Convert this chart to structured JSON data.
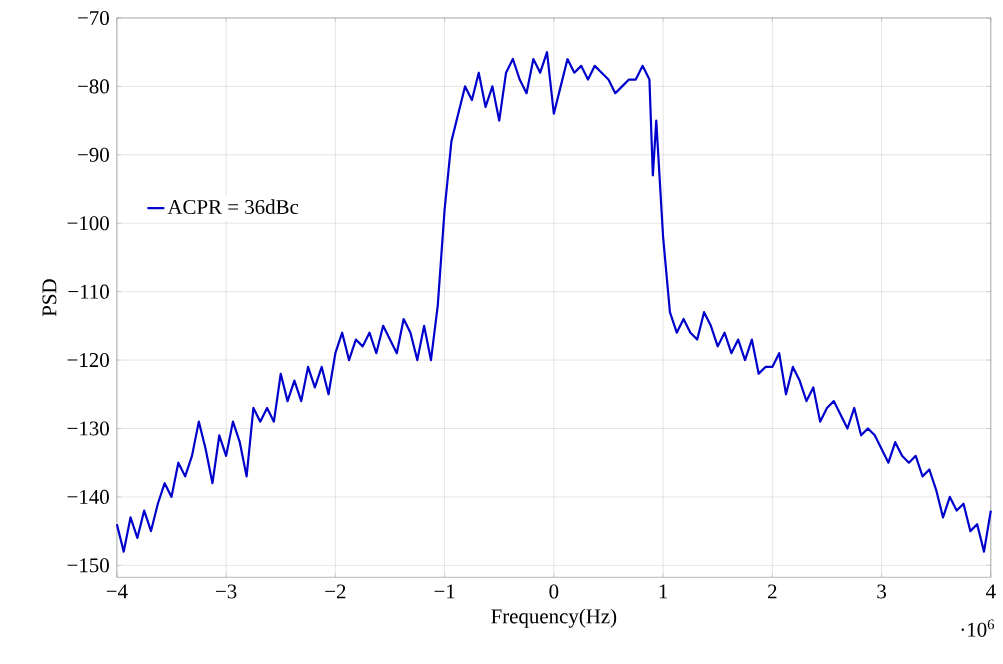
{
  "chart_data": {
    "type": "line",
    "xlabel": "Frequency(Hz)",
    "ylabel": "PSD",
    "annotations": [
      "·10$^{6}$"
    ],
    "x": [
      -4,
      -3.9375,
      -3.875,
      -3.8125,
      -3.75,
      -3.6875,
      -3.625,
      -3.5625,
      -3.5,
      -3.4375,
      -3.375,
      -3.3125,
      -3.25,
      -3.1875,
      -3.125,
      -3.0625,
      -3,
      -2.9375,
      -2.875,
      -2.8125,
      -2.75,
      -2.6875,
      -2.625,
      -2.5625,
      -2.5,
      -2.4375,
      -2.375,
      -2.3125,
      -2.25,
      -2.1875,
      -2.125,
      -2.0625,
      -2,
      -1.9375,
      -1.875,
      -1.8125,
      -1.75,
      -1.6875,
      -1.625,
      -1.5625,
      -1.5,
      -1.4375,
      -1.375,
      -1.3125,
      -1.25,
      -1.1875,
      -1.125,
      -1.0625,
      -1,
      -0.9375,
      -0.875,
      -0.8125,
      -0.75,
      -0.6875,
      -0.625,
      -0.5625,
      -0.5,
      -0.4375,
      -0.375,
      -0.3125,
      -0.25,
      -0.1875,
      -0.125,
      -0.0625,
      0,
      0.0625,
      0.125,
      0.1875,
      0.25,
      0.3125,
      0.375,
      0.4375,
      0.5,
      0.5625,
      0.625,
      0.6875,
      0.75,
      0.8125,
      0.875,
      0.90625,
      0.9375,
      1,
      1.0625,
      1.125,
      1.1875,
      1.25,
      1.3125,
      1.375,
      1.4375,
      1.5,
      1.5625,
      1.625,
      1.6875,
      1.75,
      1.8125,
      1.875,
      1.9375,
      2,
      2.0625,
      2.125,
      2.1875,
      2.25,
      2.3125,
      2.375,
      2.4375,
      2.5,
      2.5625,
      2.625,
      2.6875,
      2.75,
      2.8125,
      2.875,
      2.9375,
      3,
      3.0625,
      3.125,
      3.1875,
      3.25,
      3.3125,
      3.375,
      3.4375,
      3.5,
      3.5625,
      3.625,
      3.6875,
      3.75,
      3.8125,
      3.875,
      3.9375,
      4
    ],
    "series": [
      {
        "name": "ACPR = 36dBc",
        "color": "#0000cc",
        "values": [
          -144,
          -148,
          -143,
          -146,
          -142,
          -145,
          -141,
          -138,
          -140,
          -135,
          -137,
          -134,
          -129,
          -133,
          -138,
          -131,
          -134,
          -129,
          -132,
          -137,
          -127,
          -129,
          -127,
          -129,
          -122,
          -126,
          -123,
          -126,
          -121,
          -124,
          -121,
          -125,
          -119,
          -116,
          -120,
          -117,
          -118,
          -116,
          -119,
          -115,
          -117,
          -119,
          -114,
          -116,
          -120,
          -115,
          -120,
          -112,
          -98,
          -88,
          -84,
          -80,
          -82,
          -78,
          -83,
          -80,
          -85,
          -78,
          -76,
          -79,
          -81,
          -76,
          -78,
          -75,
          -84,
          -80,
          -76,
          -78,
          -77,
          -79,
          -77,
          -78,
          -79,
          -81,
          -80,
          -79,
          -79,
          -77,
          -79,
          -93,
          -85,
          -102,
          -113,
          -116,
          -114,
          -116,
          -117,
          -113,
          -115,
          -118,
          -116,
          -119,
          -117,
          -120,
          -117,
          -122,
          -121,
          -121,
          -119,
          -125,
          -121,
          -123,
          -126,
          -124,
          -129,
          -127,
          -126,
          -128,
          -130,
          -127,
          -131,
          -130,
          -131,
          -133,
          -135,
          -132,
          -134,
          -135,
          -134,
          -137,
          -136,
          -139,
          -143,
          -140,
          -142,
          -141,
          -145,
          -144,
          -148,
          -142
        ]
      }
    ],
    "xlim": [
      -4,
      4
    ],
    "ylim": [
      -151.75,
      -70
    ],
    "xticks": [
      {
        "value": -4,
        "label": "−4"
      },
      {
        "value": -3,
        "label": "−3"
      },
      {
        "value": -2,
        "label": "−2"
      },
      {
        "value": -1,
        "label": "−1"
      },
      0,
      1,
      2,
      3,
      4
    ],
    "yticks": [
      {
        "value": -150,
        "label": "−150"
      },
      {
        "value": -140,
        "label": "−140"
      },
      {
        "value": -130,
        "label": "−130"
      },
      {
        "value": -120,
        "label": "−120"
      },
      {
        "value": -110,
        "label": "−110"
      },
      {
        "value": -100,
        "label": "−100"
      },
      {
        "value": -90,
        "label": "−90"
      },
      {
        "value": -80,
        "label": "−80"
      },
      {
        "value": -70,
        "label": "−70"
      }
    ],
    "grid": true,
    "legend": "left",
    "marker": "none",
    "line_style": "solid"
  }
}
